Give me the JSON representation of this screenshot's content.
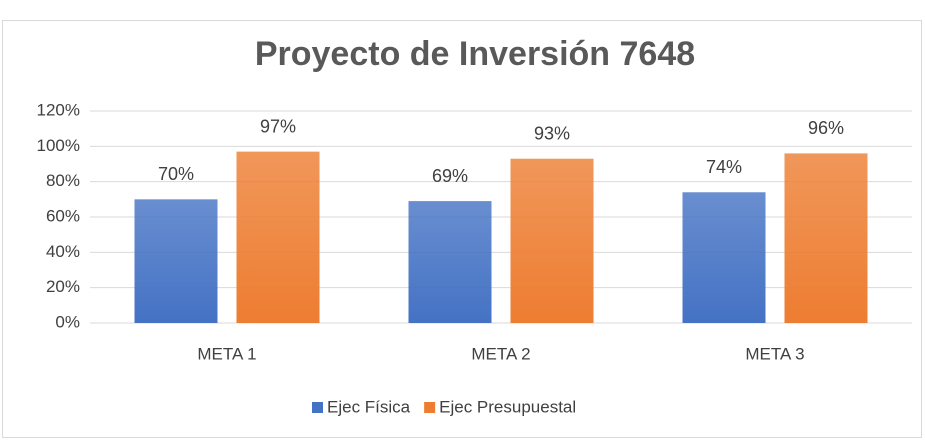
{
  "chart_data": {
    "type": "bar",
    "title": "Proyecto de Inversión 7648",
    "categories": [
      "META 1",
      "META 2",
      "META 3"
    ],
    "series": [
      {
        "name": "Ejec Física",
        "color": "#4472c4",
        "values": [
          70,
          69,
          74
        ],
        "value_labels": [
          "70%",
          "69%",
          "74%"
        ]
      },
      {
        "name": "Ejec Presupuestal",
        "color": "#ed7d31",
        "values": [
          97,
          93,
          96
        ],
        "value_labels": [
          "97%",
          "93%",
          "96%"
        ]
      }
    ],
    "ylim": [
      0,
      120
    ],
    "yticks": [
      {
        "value": 0,
        "label": "0%"
      },
      {
        "value": 20,
        "label": "20%"
      },
      {
        "value": 40,
        "label": "40%"
      },
      {
        "value": 60,
        "label": "60%"
      },
      {
        "value": 80,
        "label": "80%"
      },
      {
        "value": 100,
        "label": "100%"
      },
      {
        "value": 120,
        "label": "120%"
      }
    ],
    "grid": true,
    "legend": "bottom"
  }
}
